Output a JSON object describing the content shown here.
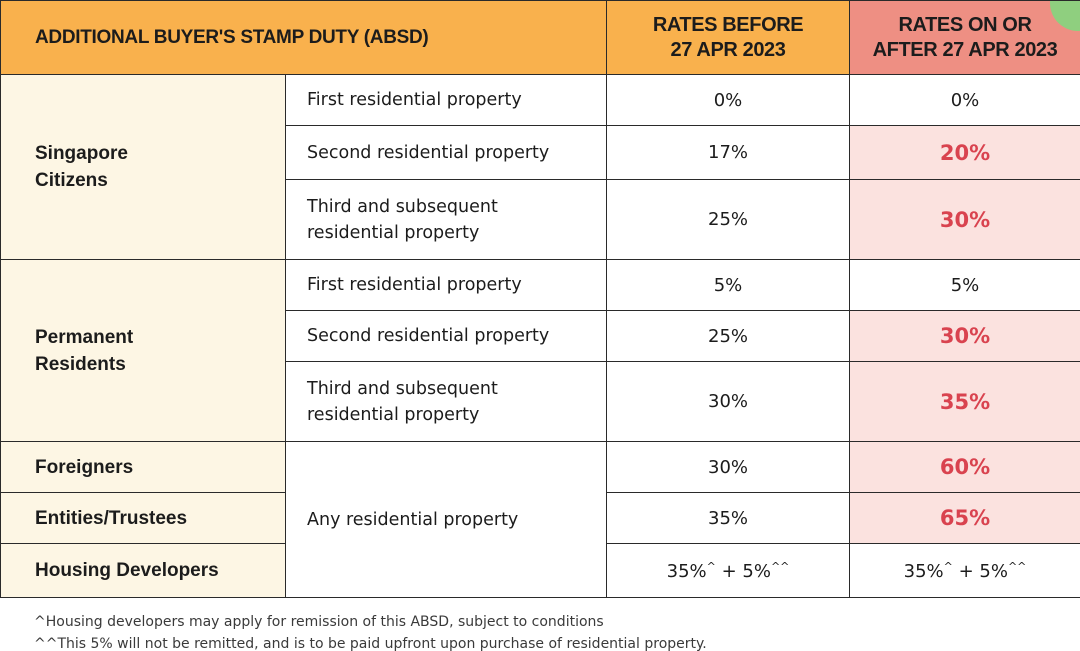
{
  "header": {
    "title": "ADDITIONAL BUYER'S STAMP DUTY (ABSD)",
    "before_line1": "RATES BEFORE",
    "before_line2": "27 APR 2023",
    "after_line1": "RATES ON OR",
    "after_line2": "AFTER 27 APR 2023"
  },
  "groups": {
    "citizens": {
      "label_line1": "Singapore",
      "label_line2": "Citizens",
      "rows": [
        {
          "property_line1": "First residential property",
          "property_line2": "",
          "before": "0%",
          "after": "0%"
        },
        {
          "property_line1": "Second residential property",
          "property_line2": "",
          "before": "17%",
          "after": "20%"
        },
        {
          "property_line1": "Third and subsequent",
          "property_line2": "residential property",
          "before": "25%",
          "after": "30%"
        }
      ]
    },
    "pr": {
      "label_line1": "Permanent",
      "label_line2": "Residents",
      "rows": [
        {
          "property_line1": "First residential property",
          "property_line2": "",
          "before": "5%",
          "after": "5%"
        },
        {
          "property_line1": "Second residential property",
          "property_line2": "",
          "before": "25%",
          "after": "30%"
        },
        {
          "property_line1": "Third and subsequent",
          "property_line2": "residential property",
          "before": "30%",
          "after": "35%"
        }
      ]
    },
    "others": {
      "property": "Any residential property",
      "rows": [
        {
          "label": "Foreigners",
          "before": "30%",
          "after": "60%"
        },
        {
          "label": "Entities/Trustees",
          "before": "35%",
          "after": "65%"
        },
        {
          "label": "Housing Developers",
          "before_main": "35%",
          "before_mark1": "^",
          "before_plus": " + 5%",
          "before_mark2": "^^",
          "after_main": "35%",
          "after_mark1": "^",
          "after_plus": " + 5%",
          "after_mark2": "^^"
        }
      ]
    }
  },
  "notes": {
    "note1": "^Housing developers may apply for remission of this ABSD, subject to conditions",
    "note2": "^^This 5% will not be remitted, and is to be paid upfront upon purchase of residential property."
  },
  "colors": {
    "header_orange": "#f9b14d",
    "header_pink": "#ee8f83",
    "group_cream": "#fdf6e4",
    "highlight_bg": "#fbe2df",
    "highlight_text": "#d9434f",
    "corner_green": "#8fcf7f"
  }
}
